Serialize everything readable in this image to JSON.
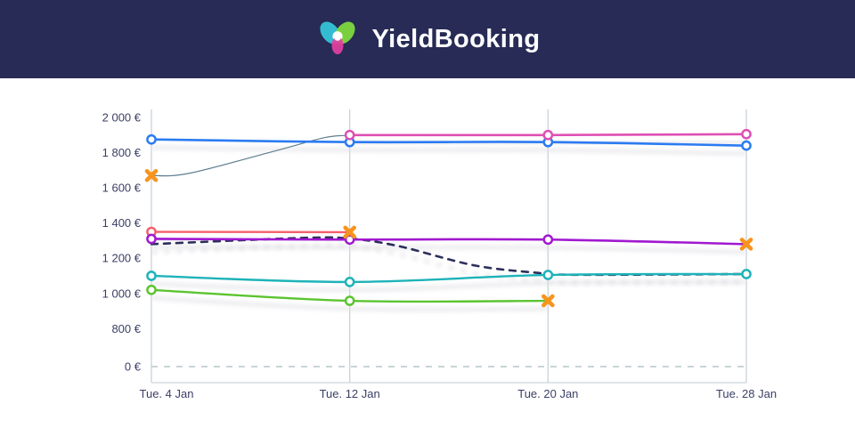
{
  "header": {
    "brand": "YieldBooking",
    "logo_colors": {
      "left_petal": "#34c3d6",
      "right_petal": "#7ed63f",
      "bottom_petal": "#e23fa0",
      "overlap": "#ffffff"
    }
  },
  "colors": {
    "header_bg": "#272b55",
    "axis_text": "#3b4066",
    "gridline": "#c9d3d9",
    "zero_line": "#b7c6cc",
    "marker_x": "#f7941e",
    "marker_fill": "#ffffff"
  },
  "chart_data": {
    "type": "line",
    "title": "",
    "xlabel": "",
    "ylabel": "",
    "currency": "EUR",
    "x_tick_labels": [
      "Tue. 4 Jan",
      "Tue. 12 Jan",
      "Tue. 20 Jan",
      "Tue. 28 Jan"
    ],
    "x_tick_days": [
      4,
      12,
      20,
      28
    ],
    "y_ticks": [
      2000,
      1800,
      1600,
      1400,
      1200,
      1000,
      800,
      0
    ],
    "y_tick_labels": [
      "2 000 €",
      "1 800 €",
      "1 600 €",
      "1 400 €",
      "1 200 €",
      "1 000 €",
      "800 €",
      "0 €"
    ],
    "axis_note": "y axis compressed between 800 and 0",
    "grid": "vertical-only",
    "legend": "none",
    "zero_line": {
      "value": 0,
      "style": "dashed",
      "color": "#b7c6cc"
    },
    "series": [
      {
        "name": "slate-thin-line",
        "color": "#5d7e91",
        "width": 1.2,
        "dash": null,
        "shadow": false,
        "points": [
          {
            "day": 4,
            "value": 1670,
            "marker": "x"
          },
          {
            "day": 5.5,
            "value": 1682
          },
          {
            "day": 9,
            "value": 1810
          },
          {
            "day": 11,
            "value": 1886
          },
          {
            "day": 12,
            "value": 1898
          }
        ]
      },
      {
        "name": "dashed-navy-line",
        "color": "#2c2f5b",
        "width": 2.6,
        "dash": "7 7",
        "shadow": true,
        "points": [
          {
            "day": 4,
            "value": 1280
          },
          {
            "day": 10,
            "value": 1315
          },
          {
            "day": 12,
            "value": 1312
          },
          {
            "day": 14,
            "value": 1268
          },
          {
            "day": 17,
            "value": 1160
          },
          {
            "day": 19.5,
            "value": 1118
          },
          {
            "day": 21,
            "value": 1106
          },
          {
            "day": 28,
            "value": 1110
          }
        ]
      },
      {
        "name": "red-line",
        "color": "#f4606c",
        "width": 2.4,
        "dash": null,
        "shadow": true,
        "points": [
          {
            "day": 4,
            "value": 1350,
            "marker": "circle"
          },
          {
            "day": 12,
            "value": 1348,
            "marker": "x"
          }
        ]
      },
      {
        "name": "purple-line",
        "color": "#a118d0",
        "width": 2.6,
        "dash": null,
        "shadow": true,
        "points": [
          {
            "day": 4,
            "value": 1310,
            "marker": "circle"
          },
          {
            "day": 12,
            "value": 1306,
            "marker": "circle"
          },
          {
            "day": 20,
            "value": 1306,
            "marker": "circle"
          },
          {
            "day": 28,
            "value": 1280,
            "marker": "x"
          }
        ]
      },
      {
        "name": "teal-line",
        "color": "#1eb3b9",
        "width": 2.4,
        "dash": null,
        "shadow": true,
        "points": [
          {
            "day": 4,
            "value": 1100,
            "marker": "circle"
          },
          {
            "day": 12,
            "value": 1065,
            "marker": "circle"
          },
          {
            "day": 20,
            "value": 1105,
            "marker": "circle"
          },
          {
            "day": 28,
            "value": 1110,
            "marker": "circle"
          }
        ]
      },
      {
        "name": "green-line",
        "color": "#5bc430",
        "width": 2.4,
        "dash": null,
        "shadow": true,
        "points": [
          {
            "day": 4,
            "value": 1020,
            "marker": "circle"
          },
          {
            "day": 12,
            "value": 958,
            "marker": "circle"
          },
          {
            "day": 20,
            "value": 958,
            "marker": "x"
          }
        ]
      },
      {
        "name": "blue-line",
        "color": "#2b7bf2",
        "width": 2.6,
        "dash": null,
        "shadow": true,
        "points": [
          {
            "day": 4,
            "value": 1875,
            "marker": "circle"
          },
          {
            "day": 12,
            "value": 1860,
            "marker": "circle"
          },
          {
            "day": 20,
            "value": 1860,
            "marker": "circle"
          },
          {
            "day": 28,
            "value": 1840,
            "marker": "circle"
          }
        ]
      },
      {
        "name": "pink-line",
        "color": "#df4fb3",
        "width": 2.6,
        "dash": null,
        "shadow": true,
        "points": [
          {
            "day": 12,
            "value": 1900,
            "marker": "circle"
          },
          {
            "day": 20,
            "value": 1900,
            "marker": "circle"
          },
          {
            "day": 28,
            "value": 1905,
            "marker": "circle"
          }
        ]
      }
    ]
  }
}
